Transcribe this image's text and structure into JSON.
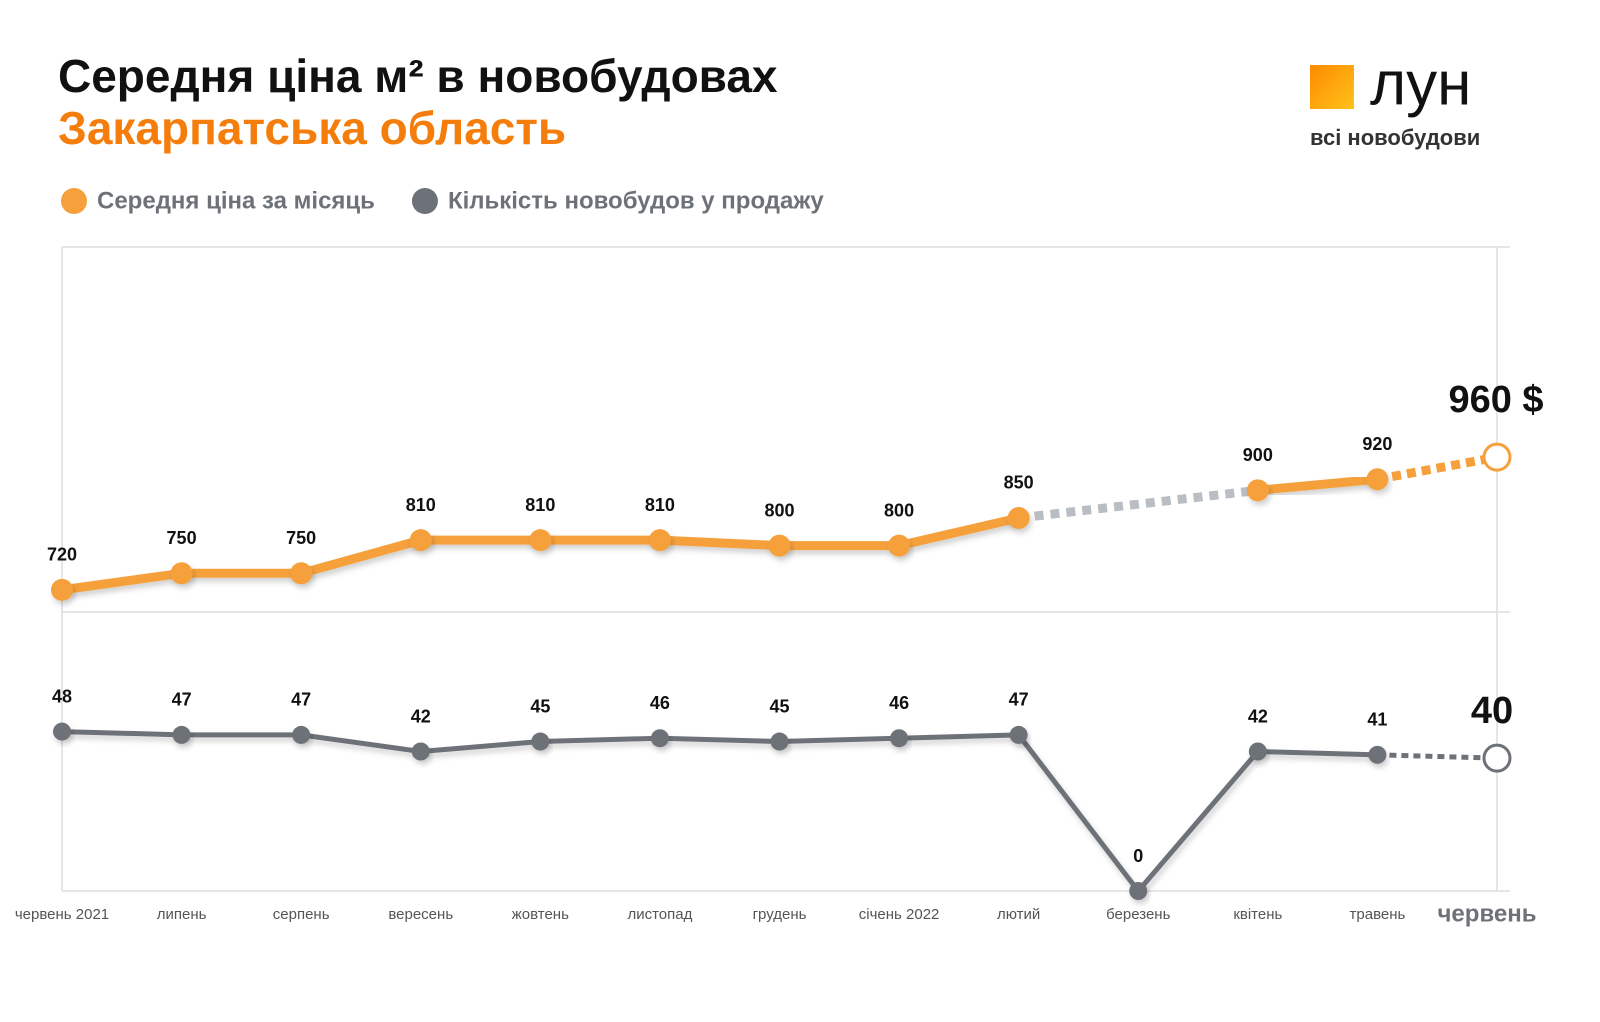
{
  "chart_data": {
    "type": "line",
    "title": "Середня ціна м² в новобудовах",
    "subtitle": "Закарпатська область",
    "brand": {
      "name": "лун",
      "tagline": "всі новобудови"
    },
    "categories": [
      "червень 2021",
      "липень",
      "серпень",
      "вересень",
      "жовтень",
      "листопад",
      "грудень",
      "січень 2022",
      "лютий",
      "березень",
      "квітень",
      "травень",
      "червень"
    ],
    "series": [
      {
        "name": "Середня ціна за місяць",
        "color": "#f5a03a",
        "values": [
          720,
          750,
          750,
          810,
          810,
          810,
          800,
          800,
          850,
          null,
          900,
          920,
          960
        ],
        "value_labels": [
          "720",
          "750",
          "750",
          "810",
          "810",
          "810",
          "800",
          "800",
          "850",
          null,
          "900",
          "920",
          "960 $"
        ]
      },
      {
        "name": "Кількість новобудов у продажу",
        "color": "#6d7178",
        "axis": "y2",
        "values": [
          48,
          47,
          47,
          42,
          45,
          46,
          45,
          46,
          47,
          0,
          42,
          41,
          40
        ]
      }
    ],
    "ylim": [
      680,
      1340
    ],
    "y2lim": [
      0,
      84
    ],
    "legend": "top-left"
  }
}
